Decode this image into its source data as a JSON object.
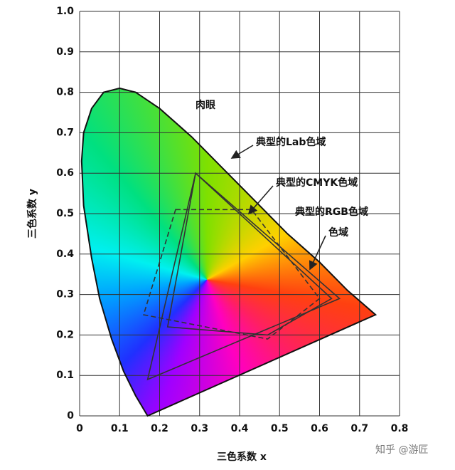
{
  "chart_data": {
    "type": "chromaticity",
    "xlabel": "三色系数 x",
    "ylabel": "三色系数 y",
    "xlim": [
      0,
      0.8
    ],
    "ylim": [
      0,
      1
    ],
    "xticks": [
      0,
      0.1,
      0.2,
      0.3,
      0.4,
      0.5,
      0.6,
      0.7,
      0.8
    ],
    "yticks": [
      0,
      0.1,
      0.2,
      0.3,
      0.4,
      0.5,
      0.6,
      0.7,
      0.8,
      0.9,
      {
        "value": 1,
        "label": "1.0"
      }
    ],
    "grid": true,
    "locus": {
      "x": [
        0.17,
        0.14,
        0.11,
        0.08,
        0.05,
        0.03,
        0.01,
        0.005,
        0.01,
        0.03,
        0.06,
        0.1,
        0.14,
        0.2,
        0.28,
        0.36,
        0.44,
        0.52,
        0.6,
        0.67,
        0.74
      ],
      "y": [
        0.0,
        0.05,
        0.11,
        0.19,
        0.29,
        0.39,
        0.52,
        0.63,
        0.7,
        0.76,
        0.8,
        0.81,
        0.8,
        0.76,
        0.69,
        0.61,
        0.53,
        0.45,
        0.38,
        0.31,
        0.25
      ]
    },
    "regions": [
      {
        "x": [
          0.29,
          0.65,
          0.17
        ],
        "y": [
          0.6,
          0.29,
          0.09
        ],
        "dashed": false
      },
      {
        "x": [
          0.24,
          0.43,
          0.6,
          0.47,
          0.16
        ],
        "y": [
          0.51,
          0.51,
          0.29,
          0.19,
          0.25
        ],
        "dashed": true
      },
      {
        "x": [
          0.29,
          0.63,
          0.47,
          0.22
        ],
        "y": [
          0.6,
          0.29,
          0.2,
          0.22
        ],
        "dashed": false
      }
    ],
    "annotations": [
      "肉眼",
      "典型的Lab色域",
      "典型的CMYK色域",
      "典型的RGB色域",
      "色域"
    ],
    "watermark": "知乎 @游匠"
  }
}
